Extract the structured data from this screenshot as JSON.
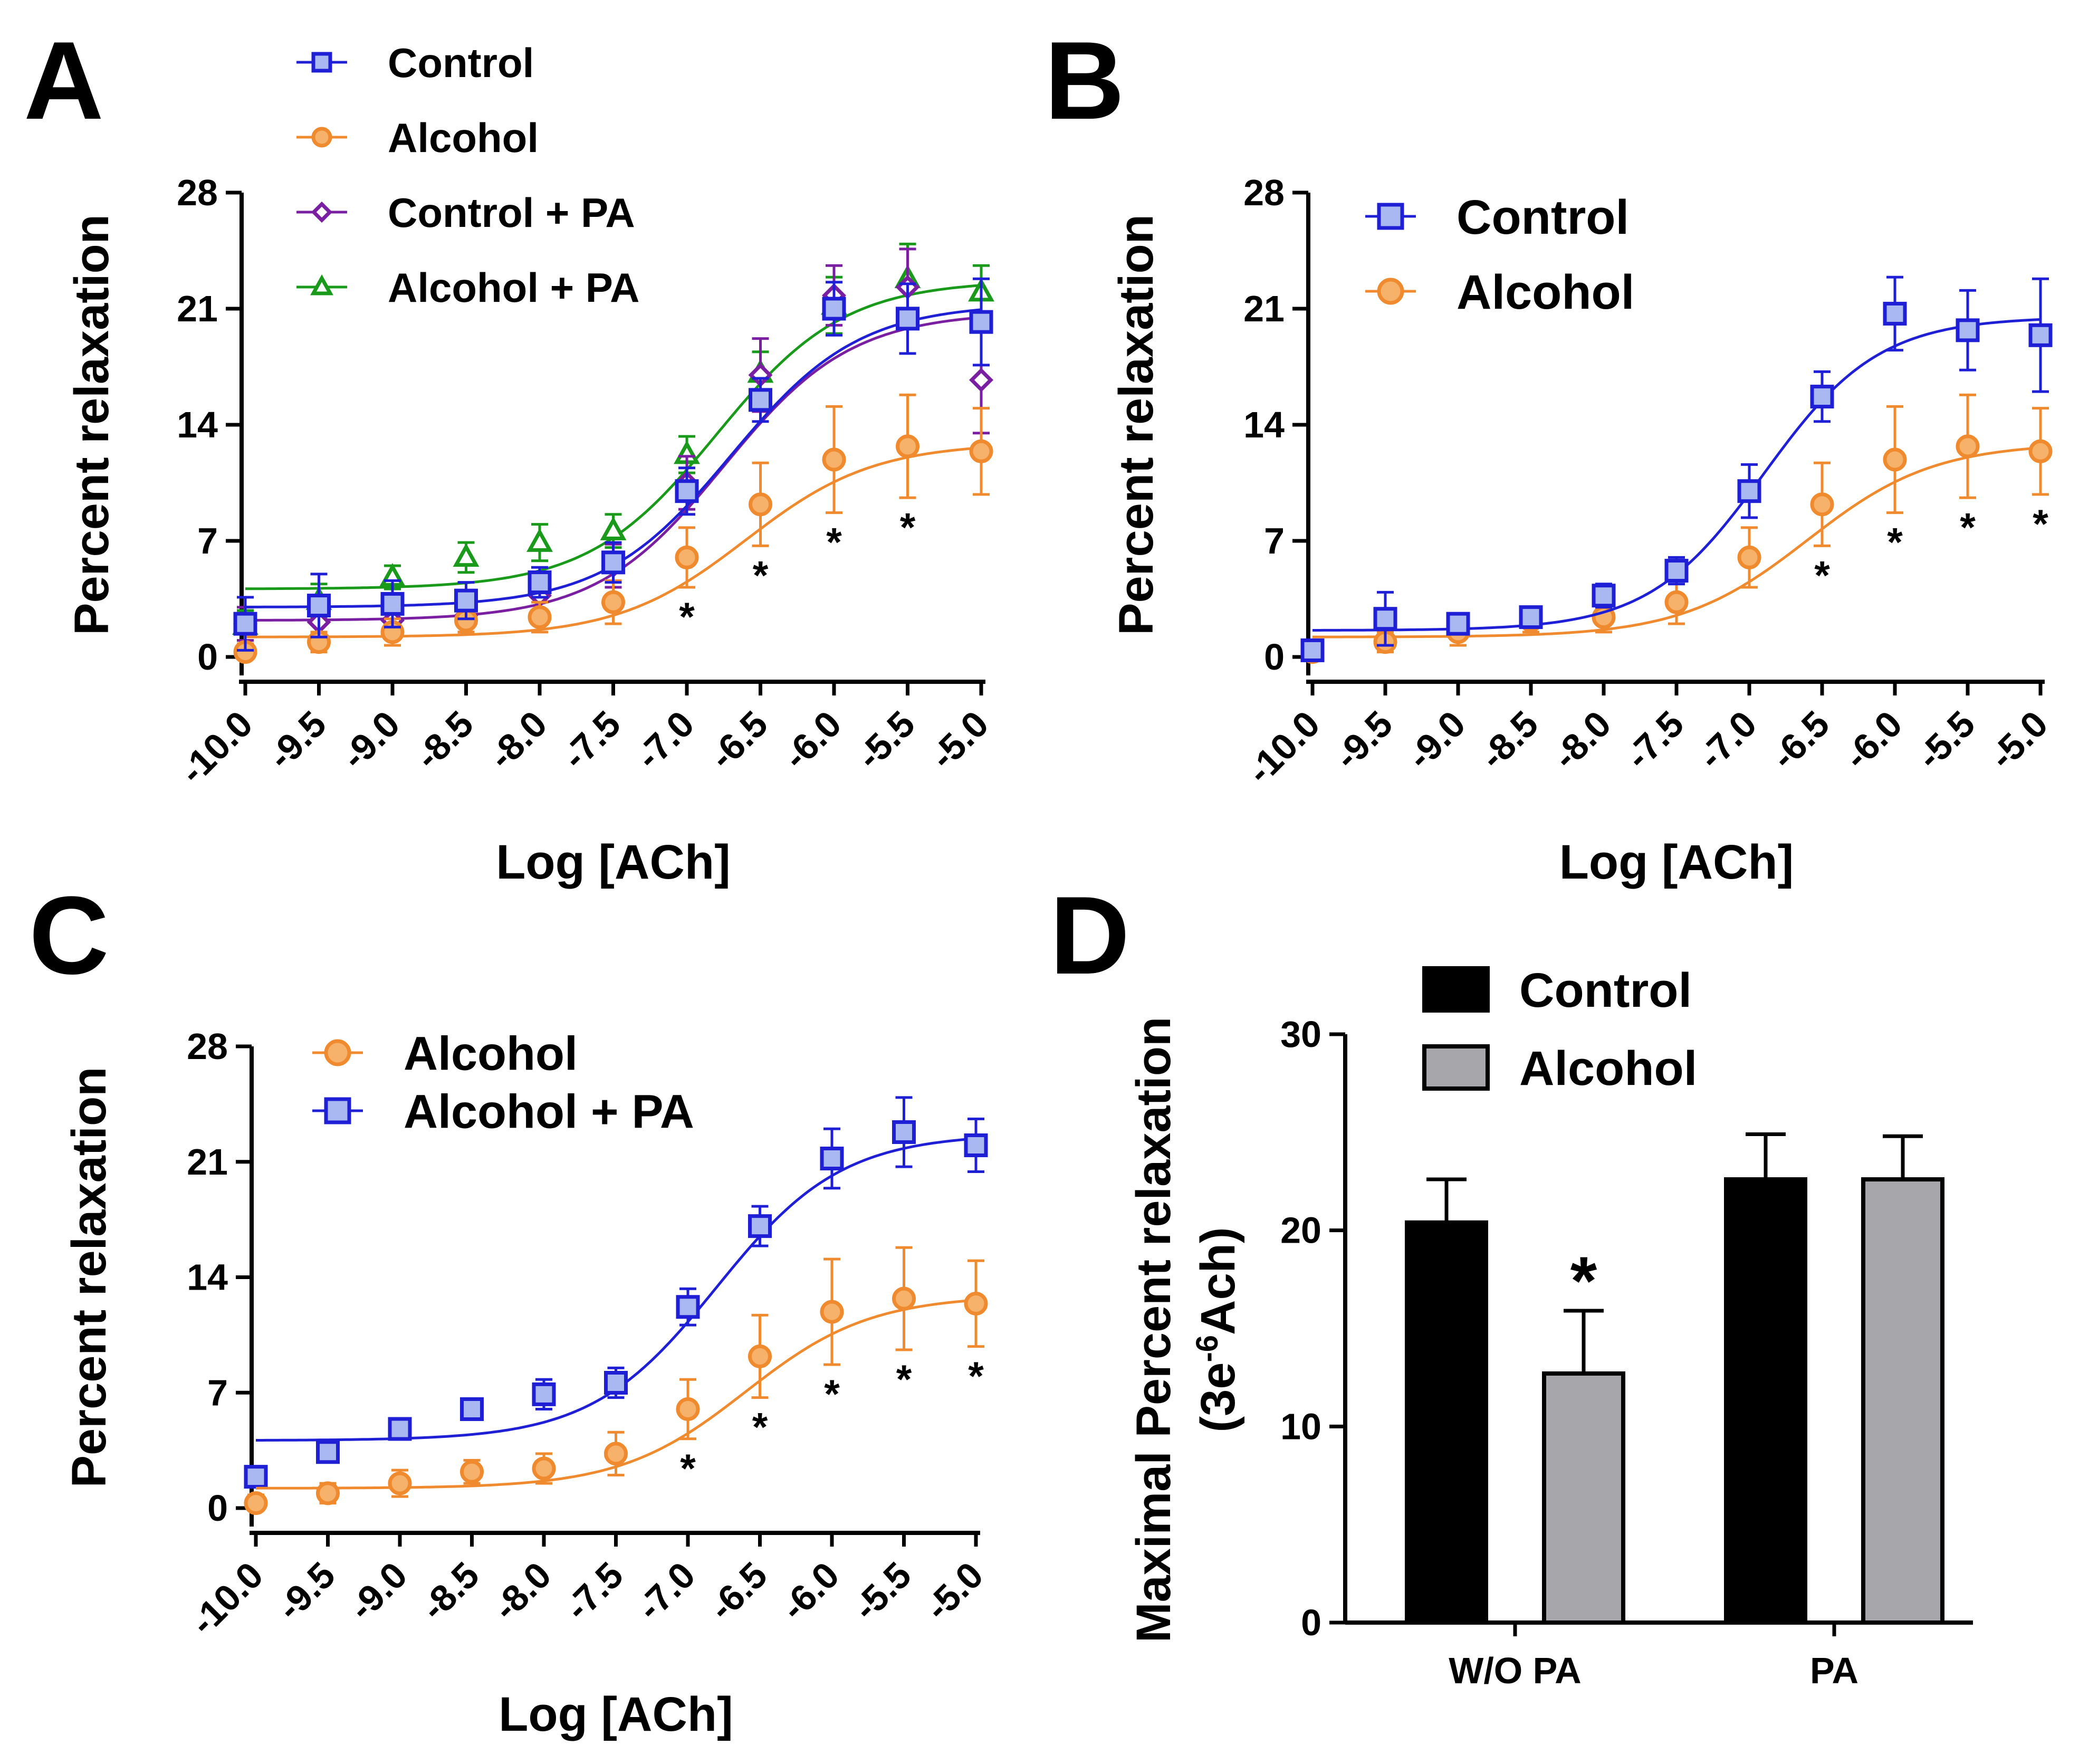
{
  "chart_data": [
    {
      "panel": "A",
      "type": "scatter",
      "xlabel": "Log [ACh]",
      "ylabel": "Percent relaxation",
      "xlim": [
        -10.0,
        -5.0
      ],
      "ylim": [
        0,
        28
      ],
      "xticks": [
        "-10.0",
        "-9.5",
        "-9.0",
        "-8.5",
        "-8.0",
        "-7.5",
        "-7.0",
        "-6.5",
        "-6.0",
        "-5.5",
        "-5.0"
      ],
      "yticks": [
        "0",
        "7",
        "14",
        "21",
        "28"
      ],
      "x": [
        -10.0,
        -9.5,
        -9.0,
        -8.5,
        -8.0,
        -7.5,
        -7.0,
        -6.5,
        -6.0,
        -5.5,
        -5.0
      ],
      "legend": "top-left",
      "series": [
        {
          "name": "Control",
          "color": "#1f1fd6",
          "fill": "#a9b8f0",
          "marker": "square",
          "values": [
            2.0,
            3.1,
            3.2,
            3.4,
            4.5,
            5.7,
            10.0,
            15.5,
            21.0,
            20.4,
            20.2
          ],
          "err": [
            1.6,
            1.9,
            1.4,
            1.1,
            0.9,
            1.2,
            1.4,
            1.3,
            1.6,
            2.1,
            2.6
          ],
          "fit": {
            "bottom": 3.0,
            "top": 21.3,
            "logec50": -6.7,
            "hill": 1.0
          }
        },
        {
          "name": "Alcohol",
          "color": "#f08a2e",
          "fill": "#f6b26b",
          "marker": "circle",
          "values": [
            0.3,
            0.9,
            1.5,
            2.2,
            2.4,
            3.3,
            6.0,
            9.2,
            11.9,
            12.7,
            12.4
          ],
          "err": [
            0.5,
            0.6,
            0.8,
            0.7,
            0.9,
            1.3,
            1.8,
            2.5,
            3.2,
            3.1,
            2.6
          ],
          "fit": {
            "bottom": 1.2,
            "top": 12.9,
            "logec50": -6.6,
            "hill": 1.0
          }
        },
        {
          "name": "Control + PA",
          "color": "#7b1fa2",
          "fill": "#ffffff",
          "marker": "diamond",
          "values": [
            2.0,
            2.1,
            2.2,
            2.5,
            3.7,
            5.5,
            10.5,
            17.0,
            21.8,
            22.3,
            16.7
          ],
          "err": [
            1.0,
            0.9,
            1.0,
            1.0,
            1.1,
            1.3,
            1.6,
            2.2,
            1.8,
            2.3,
            3.2
          ],
          "fit": {
            "bottom": 2.2,
            "top": 20.8,
            "logec50": -6.75,
            "hill": 1.0
          }
        },
        {
          "name": "Alcohol + PA",
          "color": "#1a9a1a",
          "fill": "#ffffff",
          "marker": "triangle",
          "values": [
            1.9,
            3.4,
            4.8,
            6.0,
            6.9,
            7.6,
            12.2,
            17.1,
            21.2,
            22.8,
            22.0
          ],
          "err": [
            0.9,
            1.0,
            0.7,
            0.9,
            1.1,
            1.0,
            1.1,
            1.3,
            1.7,
            2.1,
            1.6
          ],
          "fit": {
            "bottom": 4.1,
            "top": 22.7,
            "logec50": -6.8,
            "hill": 1.0
          }
        }
      ],
      "annotations": [
        {
          "x": -7.0,
          "text": "*"
        },
        {
          "x": -6.5,
          "text": "*"
        },
        {
          "x": -6.0,
          "text": "*"
        },
        {
          "x": -5.5,
          "text": "*"
        }
      ]
    },
    {
      "panel": "B",
      "type": "scatter",
      "xlabel": "Log [ACh]",
      "ylabel": "Percent relaxation",
      "xlim": [
        -10.0,
        -5.0
      ],
      "ylim": [
        0,
        28
      ],
      "xticks": [
        "-10.0",
        "-9.5",
        "-9.0",
        "-8.5",
        "-8.0",
        "-7.5",
        "-7.0",
        "-6.5",
        "-6.0",
        "-5.5",
        "-5.0"
      ],
      "yticks": [
        "0",
        "7",
        "14",
        "21",
        "28"
      ],
      "x": [
        -10.0,
        -9.5,
        -9.0,
        -8.5,
        -8.0,
        -7.5,
        -7.0,
        -6.5,
        -6.0,
        -5.5,
        -5.0
      ],
      "legend": "top-left",
      "series": [
        {
          "name": "Control",
          "color": "#1f1fd6",
          "fill": "#a9b8f0",
          "marker": "square",
          "values": [
            0.4,
            2.3,
            2.0,
            2.4,
            3.7,
            5.2,
            10.0,
            15.7,
            20.7,
            19.7,
            19.4
          ],
          "err": [
            0.6,
            1.6,
            0.5,
            0.5,
            0.7,
            0.8,
            1.6,
            1.5,
            2.2,
            2.4,
            3.4
          ],
          "fit": {
            "bottom": 1.6,
            "top": 20.5,
            "logec50": -6.9,
            "hill": 1.1
          }
        },
        {
          "name": "Alcohol",
          "color": "#f08a2e",
          "fill": "#f6b26b",
          "marker": "circle",
          "values": [
            0.3,
            0.9,
            1.5,
            2.2,
            2.4,
            3.3,
            6.0,
            9.2,
            11.9,
            12.7,
            12.4
          ],
          "err": [
            0.5,
            0.6,
            0.8,
            0.7,
            0.9,
            1.3,
            1.8,
            2.5,
            3.2,
            3.1,
            2.6
          ],
          "fit": {
            "bottom": 1.2,
            "top": 12.9,
            "logec50": -6.6,
            "hill": 1.0
          }
        }
      ],
      "annotations": [
        {
          "x": -6.5,
          "text": "*"
        },
        {
          "x": -6.0,
          "text": "*"
        },
        {
          "x": -5.5,
          "text": "*"
        },
        {
          "x": -5.0,
          "text": "*"
        }
      ]
    },
    {
      "panel": "C",
      "type": "scatter",
      "xlabel": "Log [ACh]",
      "ylabel": "Percent relaxation",
      "xlim": [
        -10.0,
        -5.0
      ],
      "ylim": [
        0,
        28
      ],
      "xticks": [
        "-10.0",
        "-9.5",
        "-9.0",
        "-8.5",
        "-8.0",
        "-7.5",
        "-7.0",
        "-6.5",
        "-6.0",
        "-5.5",
        "-5.0"
      ],
      "yticks": [
        "0",
        "7",
        "14",
        "21",
        "28"
      ],
      "x": [
        -10.0,
        -9.5,
        -9.0,
        -8.5,
        -8.0,
        -7.5,
        -7.0,
        -6.5,
        -6.0,
        -5.5,
        -5.0
      ],
      "legend": "top-left",
      "series": [
        {
          "name": "Alcohol",
          "color": "#f08a2e",
          "fill": "#f6b26b",
          "marker": "circle",
          "values": [
            0.3,
            0.9,
            1.5,
            2.2,
            2.4,
            3.3,
            6.0,
            9.2,
            11.9,
            12.7,
            12.4
          ],
          "err": [
            0.5,
            0.6,
            0.8,
            0.7,
            0.9,
            1.3,
            1.8,
            2.5,
            3.2,
            3.1,
            2.6
          ],
          "fit": {
            "bottom": 1.2,
            "top": 12.9,
            "logec50": -6.6,
            "hill": 1.0
          }
        },
        {
          "name": "Alcohol + PA",
          "color": "#1f1fd6",
          "fill": "#a9b8f0",
          "marker": "square",
          "values": [
            1.9,
            3.4,
            4.8,
            6.0,
            6.9,
            7.6,
            12.2,
            17.1,
            21.2,
            22.8,
            22.0
          ],
          "err": [
            0.5,
            0.6,
            0.5,
            0.5,
            0.9,
            0.9,
            1.1,
            1.2,
            1.8,
            2.1,
            1.6
          ],
          "fit": {
            "bottom": 4.1,
            "top": 22.7,
            "logec50": -6.8,
            "hill": 1.0
          }
        }
      ],
      "annotations": [
        {
          "x": -7.0,
          "text": "*"
        },
        {
          "x": -6.5,
          "text": "*"
        },
        {
          "x": -6.0,
          "text": "*"
        },
        {
          "x": -5.5,
          "text": "*"
        },
        {
          "x": -5.0,
          "text": "*"
        }
      ]
    },
    {
      "panel": "D",
      "type": "bar",
      "ylabel_line1": "Maximal Percent relaxation",
      "ylabel_line2_prefix": "(3e",
      "ylabel_line2_sup": "-6",
      "ylabel_line2_suffix": "Ach)",
      "ylim": [
        0,
        30
      ],
      "yticks": [
        "0",
        "10",
        "20",
        "30"
      ],
      "categories": [
        "W/O PA",
        "PA"
      ],
      "legend": "top-left",
      "series": [
        {
          "name": "Control",
          "color": "#000000",
          "values": [
            20.4,
            22.6
          ],
          "err": [
            2.2,
            2.3
          ]
        },
        {
          "name": "Alcohol",
          "color": "#a6a6ab",
          "values": [
            12.7,
            22.6
          ],
          "err": [
            3.2,
            2.2
          ]
        }
      ],
      "annotations": [
        {
          "category": "W/O PA",
          "series": "Alcohol",
          "text": "*"
        }
      ]
    }
  ]
}
